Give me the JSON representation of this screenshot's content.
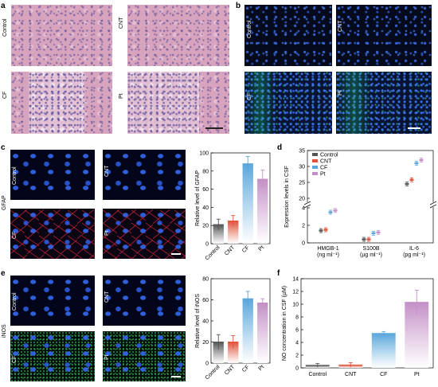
{
  "panels": {
    "a": {
      "letter": "a",
      "labels": [
        "Control",
        "CNT",
        "CF",
        "Pt"
      ]
    },
    "b": {
      "letter": "b",
      "labels": [
        "Control",
        "CNT",
        "CF",
        "Pt"
      ]
    },
    "c": {
      "letter": "c",
      "labels": [
        "Control",
        "CNT",
        "CF",
        "Pt"
      ],
      "side_label": "GFAP"
    },
    "d": {
      "letter": "d"
    },
    "e": {
      "letter": "e",
      "labels": [
        "Control",
        "CNT",
        "CF",
        "Pt"
      ],
      "side_label": "iNOS"
    },
    "f": {
      "letter": "f"
    }
  },
  "colors": {
    "control": "#555555",
    "cnt": "#e0533a",
    "cf": "#5aa7dc",
    "pt": "#c38fc6"
  },
  "chart_data": [
    {
      "id": "c",
      "type": "bar",
      "categories": [
        "Control",
        "CNT",
        "CF",
        "Pt"
      ],
      "values": [
        21,
        25,
        88,
        71
      ],
      "errors": [
        6,
        6,
        8,
        10
      ],
      "ylabel": "Relative level of GFAP",
      "ylim": [
        0,
        100
      ],
      "yticks": [
        0,
        20,
        40,
        60,
        80,
        100
      ]
    },
    {
      "id": "d",
      "type": "scatter",
      "groups": [
        "HMGB-1\n(ng ml⁻¹)",
        "S100B\n(µg ml⁻¹)",
        "IL-6\n(pg ml⁻¹)"
      ],
      "group_label_lines": [
        [
          "HMGB-1",
          "(ng ml⁻¹)"
        ],
        [
          "S100B",
          "(µg ml⁻¹)"
        ],
        [
          "IL-6",
          "(pg ml⁻¹)"
        ]
      ],
      "series": [
        {
          "name": "Control",
          "values": [
            1.4,
            0.4,
            24.5
          ]
        },
        {
          "name": "CNT",
          "values": [
            1.5,
            0.4,
            25.8
          ]
        },
        {
          "name": "CF",
          "values": [
            3.5,
            1.1,
            31.0
          ]
        },
        {
          "name": "Pt",
          "values": [
            3.7,
            1.2,
            32.0
          ]
        }
      ],
      "ylabel": "Expression levels in CSF",
      "yticks": [
        "0",
        "2",
        "4",
        "20",
        "25",
        "30",
        "35"
      ],
      "broken_axis": true
    },
    {
      "id": "e",
      "type": "bar",
      "categories": [
        "Control",
        "CNT",
        "CF",
        "Pt"
      ],
      "values": [
        20,
        20,
        61,
        57
      ],
      "errors": [
        7,
        6,
        7,
        4
      ],
      "ylabel": "Relative level of iNOS",
      "ylim": [
        0,
        80
      ],
      "yticks": [
        0,
        20,
        40,
        60,
        80
      ]
    },
    {
      "id": "f",
      "type": "bar",
      "categories": [
        "Control",
        "CNT",
        "CF",
        "Pt"
      ],
      "values": [
        0.4,
        0.45,
        5.4,
        10.3
      ],
      "errors": [
        0.3,
        0.35,
        0.3,
        1.9
      ],
      "ylabel": "NO concentration in CSF (µM)",
      "ylim": [
        0,
        14
      ],
      "yticks": [
        0,
        2,
        4,
        6,
        8,
        10,
        12,
        14
      ]
    }
  ]
}
